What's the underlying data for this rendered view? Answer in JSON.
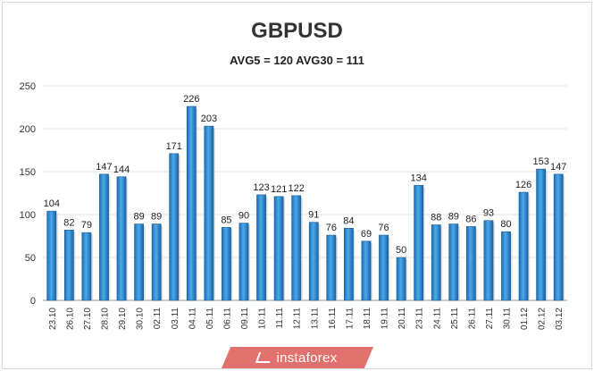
{
  "chart_data": {
    "type": "bar",
    "title": "GBPUSD",
    "subtitle": "AVG5 = 120 AVG30 = 111",
    "categories": [
      "23.10",
      "26.10",
      "27.10",
      "28.10",
      "29.10",
      "30.10",
      "02.11",
      "03.11",
      "04.11",
      "05.11",
      "06.11",
      "09.11",
      "10.11",
      "11.11",
      "12.11",
      "13.11",
      "16.11",
      "17.11",
      "18.11",
      "19.11",
      "20.11",
      "23.11",
      "24.11",
      "25.11",
      "26.11",
      "27.11",
      "30.11",
      "01.12",
      "02.12",
      "03.12"
    ],
    "values": [
      104,
      82,
      79,
      147,
      144,
      89,
      89,
      171,
      226,
      203,
      85,
      90,
      123,
      121,
      122,
      91,
      76,
      84,
      69,
      76,
      50,
      134,
      88,
      89,
      86,
      93,
      80,
      126,
      153,
      147
    ],
    "ylim": [
      0,
      250
    ],
    "yticks": [
      0,
      50,
      100,
      150,
      200,
      250
    ],
    "grid": true,
    "bar_color": "#2e8fd6"
  },
  "watermark": "instaforex"
}
